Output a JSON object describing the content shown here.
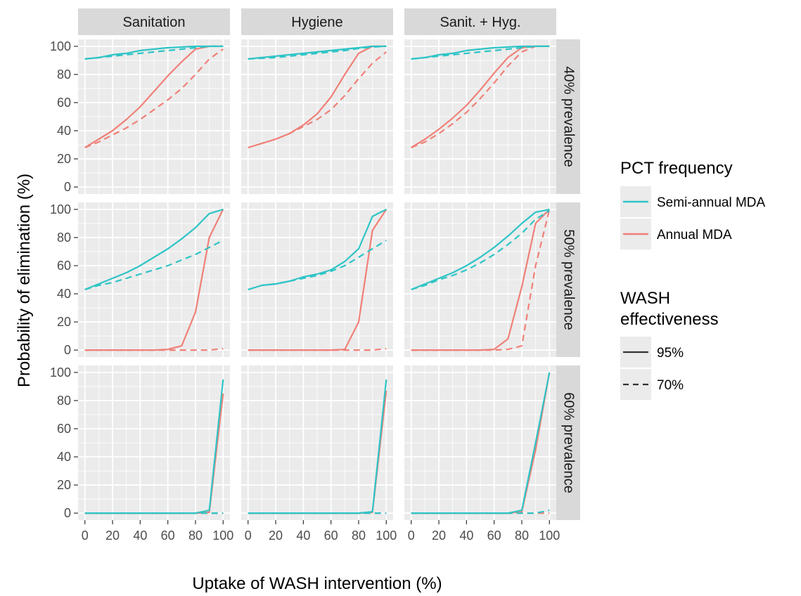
{
  "chart_data": {
    "type": "line",
    "xlabel": "Uptake of WASH intervention (%)",
    "ylabel": "Probability of elimination (%)",
    "xlim": [
      0,
      100
    ],
    "ylim": [
      0,
      100
    ],
    "x_ticks": [
      "0",
      "20",
      "40",
      "60",
      "80",
      "100"
    ],
    "y_ticks": [
      "0",
      "20",
      "40",
      "60",
      "80",
      "100"
    ],
    "grid": true,
    "facet_columns": [
      "Sanitation",
      "Hygiene",
      "Sanit. + Hyg."
    ],
    "facet_rows": [
      "40% prevalence",
      "50% prevalence",
      "60% prevalence"
    ],
    "colors": {
      "Semi-annual MDA": "#2ec4c6",
      "Annual MDA": "#f08078"
    },
    "legend": {
      "position": "right",
      "color_title": "PCT frequency",
      "color_items": [
        "Semi-annual MDA",
        "Annual MDA"
      ],
      "linetype_title": [
        "WASH",
        "effectiveness"
      ],
      "linetype_items": [
        {
          "label": "95%",
          "dash": "solid"
        },
        {
          "label": "70%",
          "dash": "dashed"
        }
      ]
    },
    "x": [
      0,
      10,
      20,
      30,
      40,
      50,
      60,
      70,
      80,
      90,
      100
    ],
    "panels": [
      {
        "row": 0,
        "col": 0,
        "series": [
          {
            "freq": "Semi-annual MDA",
            "wash": "95%",
            "values": [
              91,
              92,
              94,
              95,
              97,
              98,
              99,
              99.5,
              100,
              100,
              100
            ]
          },
          {
            "freq": "Semi-annual MDA",
            "wash": "70%",
            "values": [
              91,
              92,
              93,
              94,
              95,
              96,
              97,
              98,
              99,
              100,
              100
            ]
          },
          {
            "freq": "Annual MDA",
            "wash": "95%",
            "values": [
              28,
              34,
              40,
              48,
              57,
              68,
              79,
              89,
              98,
              100,
              100
            ]
          },
          {
            "freq": "Annual MDA",
            "wash": "70%",
            "values": [
              28,
              32,
              37,
              42,
              48,
              55,
              62,
              70,
              80,
              91,
              98
            ]
          }
        ]
      },
      {
        "row": 0,
        "col": 1,
        "series": [
          {
            "freq": "Semi-annual MDA",
            "wash": "95%",
            "values": [
              91,
              92,
              93,
              94,
              95,
              96,
              97,
              98,
              99,
              100,
              100
            ]
          },
          {
            "freq": "Semi-annual MDA",
            "wash": "70%",
            "values": [
              91,
              91.5,
              92,
              93,
              94,
              95,
              96,
              97,
              98.5,
              99.5,
              100
            ]
          },
          {
            "freq": "Annual MDA",
            "wash": "95%",
            "values": [
              28,
              31,
              34,
              38,
              44,
              52,
              64,
              80,
              95,
              100,
              100
            ]
          },
          {
            "freq": "Annual MDA",
            "wash": "70%",
            "values": [
              28,
              31,
              34,
              38,
              43,
              48,
              55,
              65,
              77,
              88,
              96
            ]
          }
        ]
      },
      {
        "row": 0,
        "col": 2,
        "series": [
          {
            "freq": "Semi-annual MDA",
            "wash": "95%",
            "values": [
              91,
              92,
              94,
              95,
              97,
              98,
              99,
              99.5,
              100,
              100,
              100
            ]
          },
          {
            "freq": "Semi-annual MDA",
            "wash": "70%",
            "values": [
              91,
              92,
              93,
              94,
              95,
              96,
              97,
              98,
              99,
              100,
              100
            ]
          },
          {
            "freq": "Annual MDA",
            "wash": "95%",
            "values": [
              28,
              34,
              41,
              49,
              58,
              69,
              81,
              92,
              99,
              100,
              100
            ]
          },
          {
            "freq": "Annual MDA",
            "wash": "70%",
            "values": [
              28,
              32,
              38,
              45,
              53,
              63,
              74,
              86,
              96,
              100,
              100
            ]
          }
        ]
      },
      {
        "row": 1,
        "col": 0,
        "series": [
          {
            "freq": "Semi-annual MDA",
            "wash": "95%",
            "values": [
              43,
              47,
              51,
              55,
              60,
              66,
              72,
              79,
              87,
              97,
              100
            ]
          },
          {
            "freq": "Semi-annual MDA",
            "wash": "70%",
            "values": [
              43,
              46,
              48,
              51,
              54,
              57,
              60,
              64,
              68,
              73,
              78
            ]
          },
          {
            "freq": "Annual MDA",
            "wash": "95%",
            "values": [
              0,
              0,
              0,
              0,
              0,
              0,
              0.5,
              3,
              27,
              80,
              100
            ]
          },
          {
            "freq": "Annual MDA",
            "wash": "70%",
            "values": [
              0,
              0,
              0,
              0,
              0,
              0,
              0,
              0,
              0,
              0,
              1
            ]
          }
        ]
      },
      {
        "row": 1,
        "col": 1,
        "series": [
          {
            "freq": "Semi-annual MDA",
            "wash": "95%",
            "values": [
              43,
              46,
              47,
              49,
              52,
              54,
              57,
              63,
              72,
              95,
              100
            ]
          },
          {
            "freq": "Semi-annual MDA",
            "wash": "70%",
            "values": [
              43,
              46,
              47,
              49,
              51,
              53,
              56,
              60,
              66,
              72,
              78
            ]
          },
          {
            "freq": "Annual MDA",
            "wash": "95%",
            "values": [
              0,
              0,
              0,
              0,
              0,
              0,
              0,
              0.5,
              20,
              85,
              100
            ]
          },
          {
            "freq": "Annual MDA",
            "wash": "70%",
            "values": [
              0,
              0,
              0,
              0,
              0,
              0,
              0,
              0,
              0,
              0,
              1
            ]
          }
        ]
      },
      {
        "row": 1,
        "col": 2,
        "series": [
          {
            "freq": "Semi-annual MDA",
            "wash": "95%",
            "values": [
              43,
              47,
              51,
              55,
              60,
              66,
              73,
              81,
              90,
              98,
              100
            ]
          },
          {
            "freq": "Semi-annual MDA",
            "wash": "70%",
            "values": [
              43,
              46,
              50,
              53,
              57,
              62,
              68,
              75,
              83,
              93,
              99
            ]
          },
          {
            "freq": "Annual MDA",
            "wash": "95%",
            "values": [
              0,
              0,
              0,
              0,
              0,
              0,
              0.5,
              8,
              45,
              90,
              100
            ]
          },
          {
            "freq": "Annual MDA",
            "wash": "70%",
            "values": [
              0,
              0,
              0,
              0,
              0,
              0,
              0,
              0.5,
              3,
              60,
              100
            ]
          }
        ]
      },
      {
        "row": 2,
        "col": 0,
        "series": [
          {
            "freq": "Semi-annual MDA",
            "wash": "95%",
            "values": [
              0,
              0,
              0,
              0,
              0,
              0,
              0,
              0,
              0,
              2,
              95
            ]
          },
          {
            "freq": "Semi-annual MDA",
            "wash": "70%",
            "values": [
              0,
              0,
              0,
              0,
              0,
              0,
              0,
              0,
              0,
              0,
              0
            ]
          },
          {
            "freq": "Annual MDA",
            "wash": "95%",
            "values": [
              0,
              0,
              0,
              0,
              0,
              0,
              0,
              0,
              0,
              0.5,
              85
            ]
          },
          {
            "freq": "Annual MDA",
            "wash": "70%",
            "values": [
              0,
              0,
              0,
              0,
              0,
              0,
              0,
              0,
              0,
              0,
              0
            ]
          }
        ]
      },
      {
        "row": 2,
        "col": 1,
        "series": [
          {
            "freq": "Semi-annual MDA",
            "wash": "95%",
            "values": [
              0,
              0,
              0,
              0,
              0,
              0,
              0,
              0,
              0,
              1,
              95
            ]
          },
          {
            "freq": "Semi-annual MDA",
            "wash": "70%",
            "values": [
              0,
              0,
              0,
              0,
              0,
              0,
              0,
              0,
              0,
              0,
              0
            ]
          },
          {
            "freq": "Annual MDA",
            "wash": "95%",
            "values": [
              0,
              0,
              0,
              0,
              0,
              0,
              0,
              0,
              0,
              0.5,
              87
            ]
          },
          {
            "freq": "Annual MDA",
            "wash": "70%",
            "values": [
              0,
              0,
              0,
              0,
              0,
              0,
              0,
              0,
              0,
              0,
              0
            ]
          }
        ]
      },
      {
        "row": 2,
        "col": 2,
        "series": [
          {
            "freq": "Semi-annual MDA",
            "wash": "95%",
            "values": [
              0,
              0,
              0,
              0,
              0,
              0,
              0,
              0,
              2,
              50,
              100
            ]
          },
          {
            "freq": "Semi-annual MDA",
            "wash": "70%",
            "values": [
              0,
              0,
              0,
              0,
              0,
              0,
              0,
              0,
              0,
              0,
              2
            ]
          },
          {
            "freq": "Annual MDA",
            "wash": "95%",
            "values": [
              0,
              0,
              0,
              0,
              0,
              0,
              0,
              0,
              1,
              45,
              100
            ]
          },
          {
            "freq": "Annual MDA",
            "wash": "70%",
            "values": [
              0,
              0,
              0,
              0,
              0,
              0,
              0,
              0,
              0,
              0,
              0
            ]
          }
        ]
      }
    ]
  }
}
